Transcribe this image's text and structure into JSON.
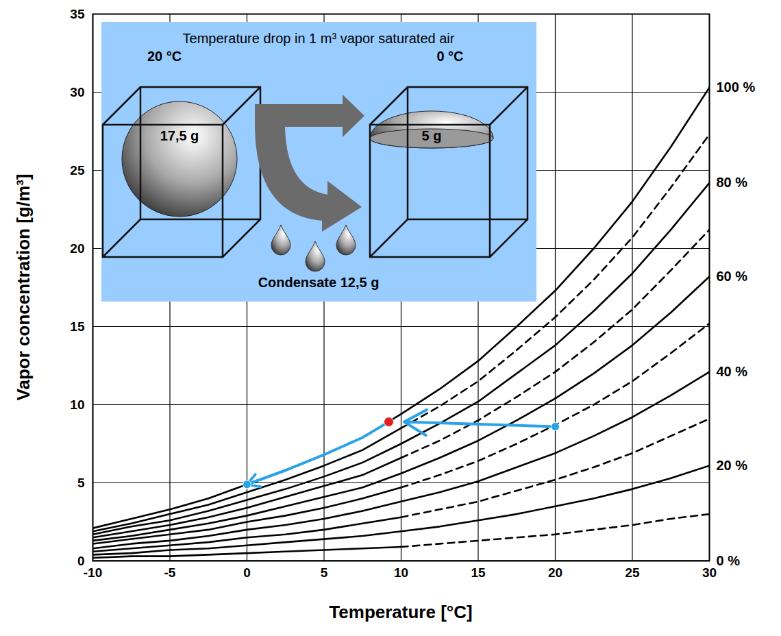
{
  "chart_data": {
    "type": "line",
    "x_label": "Temperature [°C]",
    "y_label": "Vapor concentration [g/m³]",
    "x": [
      -10,
      -7.5,
      -5,
      -2.5,
      0,
      2.5,
      5,
      7.5,
      10,
      12.5,
      15,
      17.5,
      20,
      22.5,
      25,
      27.5,
      30
    ],
    "xlim": [
      -10,
      30
    ],
    "xticks": [
      -10,
      -5,
      0,
      5,
      10,
      15,
      20,
      25,
      30
    ],
    "ylim": [
      0,
      35
    ],
    "yticks": [
      0,
      5,
      10,
      15,
      20,
      25,
      30,
      35
    ],
    "grid": true,
    "tick_labels": true,
    "series": [
      {
        "name": "100 %",
        "color": "#000000",
        "line_style": "solid",
        "values": [
          2.1,
          2.7,
          3.3,
          4.0,
          4.9,
          5.8,
          6.8,
          7.9,
          9.4,
          11.0,
          12.8,
          15.0,
          17.3,
          20.0,
          23.0,
          26.5,
          30.3
        ]
      },
      {
        "color": "#000000",
        "line_style": "solid",
        "values": [
          1.9,
          2.4,
          3.0,
          3.6,
          4.4,
          5.2,
          6.1,
          7.1,
          8.5,
          null,
          null,
          null,
          null,
          null,
          null,
          null,
          null
        ]
      },
      {
        "color": "#000000",
        "line_style": "dashed",
        "values": [
          null,
          null,
          null,
          null,
          null,
          null,
          null,
          null,
          8.5,
          9.9,
          11.5,
          13.5,
          15.6,
          18.0,
          20.7,
          23.9,
          27.3
        ]
      },
      {
        "name": "80 %",
        "color": "#000000",
        "line_style": "solid",
        "values": [
          1.7,
          2.2,
          2.6,
          3.2,
          3.9,
          4.6,
          5.4,
          6.3,
          7.5,
          8.8,
          10.2,
          12.0,
          13.8,
          16.0,
          18.4,
          21.2,
          24.2
        ]
      },
      {
        "color": "#000000",
        "line_style": "solid",
        "values": [
          1.5,
          1.9,
          2.3,
          2.8,
          3.4,
          4.1,
          4.8,
          5.5,
          6.6,
          null,
          null,
          null,
          null,
          null,
          null,
          null,
          null
        ]
      },
      {
        "color": "#000000",
        "line_style": "dashed",
        "values": [
          null,
          null,
          null,
          null,
          null,
          null,
          null,
          null,
          6.6,
          7.7,
          9.0,
          10.5,
          12.1,
          14.0,
          16.1,
          18.6,
          21.2
        ]
      },
      {
        "name": "60 %",
        "color": "#000000",
        "line_style": "solid",
        "values": [
          1.3,
          1.6,
          2.0,
          2.4,
          2.9,
          3.5,
          4.1,
          4.7,
          5.6,
          6.6,
          7.7,
          9.0,
          10.4,
          12.0,
          13.8,
          15.9,
          18.2
        ]
      },
      {
        "color": "#000000",
        "line_style": "solid",
        "values": [
          1.1,
          1.4,
          1.7,
          2.0,
          2.5,
          2.9,
          3.4,
          4.0,
          4.7,
          null,
          null,
          null,
          null,
          null,
          null,
          null,
          null
        ]
      },
      {
        "color": "#000000",
        "line_style": "dashed",
        "values": [
          null,
          null,
          null,
          null,
          null,
          null,
          null,
          null,
          4.7,
          5.5,
          6.4,
          7.5,
          8.7,
          10.0,
          11.5,
          13.3,
          15.2
        ]
      },
      {
        "name": "40 %",
        "color": "#000000",
        "line_style": "solid",
        "values": [
          0.8,
          1.1,
          1.3,
          1.6,
          2.0,
          2.3,
          2.7,
          3.2,
          3.8,
          4.4,
          5.1,
          6.0,
          6.9,
          8.0,
          9.2,
          10.6,
          12.1
        ]
      },
      {
        "color": "#000000",
        "line_style": "solid",
        "values": [
          0.6,
          0.8,
          1.0,
          1.2,
          1.5,
          1.7,
          2.0,
          2.4,
          2.8,
          null,
          null,
          null,
          null,
          null,
          null,
          null,
          null
        ]
      },
      {
        "color": "#000000",
        "line_style": "dashed",
        "values": [
          null,
          null,
          null,
          null,
          null,
          null,
          null,
          null,
          2.8,
          3.3,
          3.8,
          4.5,
          5.2,
          6.0,
          6.9,
          8.0,
          9.1
        ]
      },
      {
        "name": "20 %",
        "color": "#000000",
        "line_style": "solid",
        "values": [
          0.4,
          0.5,
          0.7,
          0.8,
          1.0,
          1.2,
          1.4,
          1.6,
          1.9,
          2.2,
          2.6,
          3.0,
          3.5,
          4.0,
          4.6,
          5.3,
          6.1
        ]
      },
      {
        "color": "#000000",
        "line_style": "solid",
        "values": [
          0.2,
          0.3,
          0.3,
          0.4,
          0.5,
          0.6,
          0.7,
          0.8,
          0.9,
          null,
          null,
          null,
          null,
          null,
          null,
          null,
          null
        ]
      },
      {
        "color": "#000000",
        "line_style": "dashed",
        "values": [
          null,
          null,
          null,
          null,
          null,
          null,
          null,
          null,
          0.9,
          1.1,
          1.3,
          1.5,
          1.7,
          2.0,
          2.3,
          2.7,
          3.0
        ]
      },
      {
        "name": "0 %",
        "color": "#000000",
        "line_style": "solid",
        "values": [
          0,
          0,
          0,
          0,
          0,
          0,
          0,
          0,
          0,
          0,
          0,
          0,
          0,
          0,
          0,
          0,
          0
        ]
      }
    ],
    "process": {
      "cooling": {
        "x": [
          20,
          10.2
        ],
        "y": [
          8.6,
          8.9
        ],
        "color": "#29a3e8",
        "line_style": "solid",
        "marker": "arrow"
      },
      "dew_point": {
        "x": 9.2,
        "y": 8.9,
        "color": "#e02020",
        "marker": "circle"
      },
      "condensation": {
        "x": [
          9.2,
          7.5,
          5,
          2.5,
          0
        ],
        "y": [
          8.9,
          7.9,
          6.8,
          5.8,
          4.9
        ],
        "color": "#29a3e8",
        "line_style": "dotted",
        "marker": "arrow"
      }
    },
    "annotations": {
      "title": "Temperature drop in 1 m³ vapor saturated air",
      "before_temperature": "20 °C",
      "before_water": "17,5 g",
      "after_temperature": "0 °C",
      "after_water": "5 g",
      "condensate": "Condensate 12,5 g",
      "color": "#99ccff"
    }
  }
}
